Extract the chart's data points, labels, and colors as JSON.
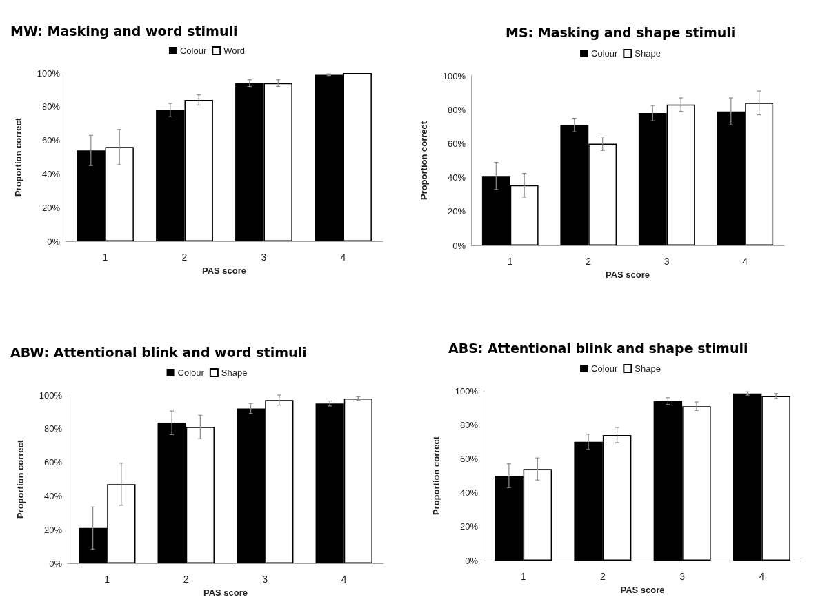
{
  "chart_data": [
    {
      "type": "bar",
      "title": "MW: Masking and word stimuli",
      "xlabel": "PAS score",
      "ylabel": "Proportion correct",
      "categories": [
        "1",
        "2",
        "3",
        "4"
      ],
      "ylim": [
        0,
        100
      ],
      "yticks": [
        {
          "value": 0,
          "label": "0%"
        },
        {
          "value": 20,
          "label": "20%"
        },
        {
          "value": 40,
          "label": "40%"
        },
        {
          "value": 60,
          "label": "60%"
        },
        {
          "value": 80,
          "label": "80%"
        },
        {
          "value": 100,
          "label": "100%"
        }
      ],
      "grid": false,
      "legend": "top",
      "series": [
        {
          "name": "Colour",
          "color": "#000000",
          "values": [
            54,
            78,
            94,
            99
          ],
          "errors": [
            9,
            4,
            2,
            0.5
          ]
        },
        {
          "name": "Word",
          "color": "#ffffff",
          "values": [
            56,
            84,
            94,
            100
          ],
          "errors": [
            10.5,
            3,
            2,
            null
          ]
        }
      ]
    },
    {
      "type": "bar",
      "title": "MS: Masking and shape stimuli",
      "xlabel": "PAS score",
      "ylabel": "Proportion correct",
      "categories": [
        "1",
        "2",
        "3",
        "4"
      ],
      "ylim": [
        0,
        100
      ],
      "yticks": [
        {
          "value": 0,
          "label": "0%"
        },
        {
          "value": 20,
          "label": "20%"
        },
        {
          "value": 40,
          "label": "40%"
        },
        {
          "value": 60,
          "label": "60%"
        },
        {
          "value": 80,
          "label": "80%"
        },
        {
          "value": 100,
          "label": "100%"
        }
      ],
      "grid": false,
      "legend": "top",
      "series": [
        {
          "name": "Colour",
          "color": "#000000",
          "values": [
            41,
            71,
            78,
            79
          ],
          "errors": [
            8,
            4,
            4.5,
            8
          ]
        },
        {
          "name": "Shape",
          "color": "#ffffff",
          "values": [
            35.5,
            60,
            83,
            84
          ],
          "errors": [
            7,
            4,
            4,
            7
          ]
        }
      ]
    },
    {
      "type": "bar",
      "title": "ABW: Attentional blink and word stimuli",
      "xlabel": "PAS score",
      "ylabel": "Proportion correct",
      "categories": [
        "1",
        "2",
        "3",
        "4"
      ],
      "ylim": [
        0,
        100
      ],
      "yticks": [
        {
          "value": 0,
          "label": "0%"
        },
        {
          "value": 20,
          "label": "20%"
        },
        {
          "value": 40,
          "label": "40%"
        },
        {
          "value": 60,
          "label": "60%"
        },
        {
          "value": 80,
          "label": "80%"
        },
        {
          "value": 100,
          "label": "100%"
        }
      ],
      "grid": false,
      "legend": "top",
      "series": [
        {
          "name": "Colour",
          "color": "#000000",
          "values": [
            21,
            83.5,
            92,
            95
          ],
          "errors": [
            12.5,
            7,
            3,
            1.5
          ]
        },
        {
          "name": "Shape",
          "color": "#ffffff",
          "values": [
            47,
            81,
            97,
            98
          ],
          "errors": [
            12.5,
            7,
            3,
            1
          ]
        }
      ]
    },
    {
      "type": "bar",
      "title": "ABS: Attentional blink and shape stimuli",
      "xlabel": "PAS score",
      "ylabel": "Proportion correct",
      "categories": [
        "1",
        "2",
        "3",
        "4"
      ],
      "ylim": [
        0,
        100
      ],
      "yticks": [
        {
          "value": 0,
          "label": "0%"
        },
        {
          "value": 20,
          "label": "20%"
        },
        {
          "value": 40,
          "label": "40%"
        },
        {
          "value": 60,
          "label": "60%"
        },
        {
          "value": 80,
          "label": "80%"
        },
        {
          "value": 100,
          "label": "100%"
        }
      ],
      "grid": false,
      "legend": "top",
      "series": [
        {
          "name": "Colour",
          "color": "#000000",
          "values": [
            50,
            70,
            94,
            98.5
          ],
          "errors": [
            7,
            4.5,
            2,
            1
          ]
        },
        {
          "name": "Shape",
          "color": "#ffffff",
          "values": [
            54,
            74,
            91,
            97
          ],
          "errors": [
            6.5,
            4.5,
            2.5,
            1.5
          ]
        }
      ]
    }
  ]
}
